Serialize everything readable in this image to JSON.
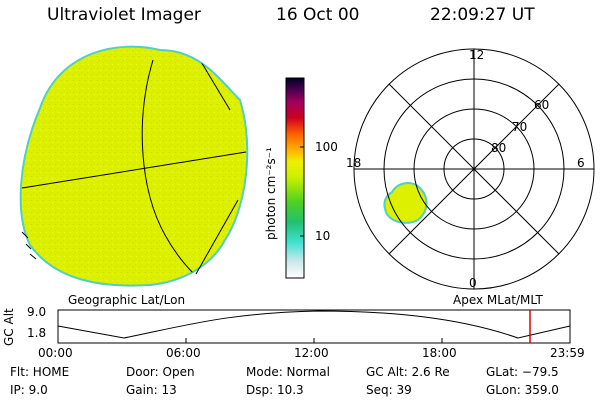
{
  "header": {
    "title": "Ultraviolet Imager",
    "date": "16 Oct 00",
    "time": "22:09:27 UT"
  },
  "colorbar": {
    "unit_label": "photon cm⁻²s⁻¹",
    "tick_100": "100",
    "tick_10": "10"
  },
  "left_panel": {
    "caption": "Geographic Lat/Lon"
  },
  "polar_plot": {
    "caption": "Apex MLat/MLT",
    "mlt_labels": {
      "top": "12",
      "left": "18",
      "right": "6",
      "bottom": "0"
    },
    "lat_labels": {
      "lat60": "60",
      "lat70": "70",
      "lat80": "80"
    }
  },
  "timeline": {
    "ylabel": "GC Alt",
    "y_top": "9.0",
    "y_bottom": "1.8",
    "ticks": [
      "00:00",
      "06:00",
      "12:00",
      "18:00",
      "23:59"
    ],
    "current_marker_time": "22:09"
  },
  "info": {
    "flt": "Flt: HOME",
    "ip": "IP:  9.0",
    "door": "Door: Open",
    "gain": "Gain: 13",
    "mode": "Mode: Normal",
    "dsp": "Dsp:   10.3",
    "gcalt": "GC Alt: 2.6 Re",
    "seq": "Seq: 39",
    "glat": "GLat: −79.5",
    "glon": "GLon: 359.0"
  },
  "colors": {
    "emission": "#ddf000",
    "rim": "#4fd0c0",
    "marker": "#e00000"
  }
}
